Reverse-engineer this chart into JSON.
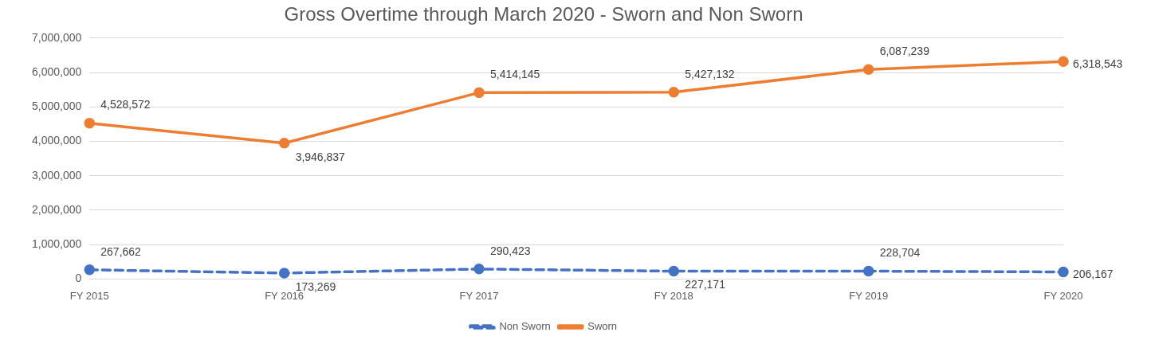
{
  "chart_data": {
    "type": "line",
    "title": "Gross Overtime through March 2020 - Sworn and Non Sworn",
    "categories": [
      "FY 2015",
      "FY 2016",
      "FY 2017",
      "FY 2018",
      "FY 2019",
      "FY 2020"
    ],
    "series": [
      {
        "name": "Non Sworn",
        "color": "#4472c4",
        "line_style": "dashed",
        "values": [
          267662,
          173269,
          290423,
          227171,
          228704,
          206167
        ],
        "value_labels": [
          "267,662",
          "173,269",
          "290,423",
          "227,171",
          "228,704",
          "206,167"
        ]
      },
      {
        "name": "Sworn",
        "color": "#ed7d31",
        "line_style": "solid",
        "values": [
          4528572,
          3946837,
          5414145,
          5427132,
          6087239,
          6318543
        ],
        "value_labels": [
          "4,528,572",
          "3,946,837",
          "5,414,145",
          "5,427,132",
          "6,087,239",
          "6,318,543"
        ]
      }
    ],
    "ylim": [
      0,
      7000000
    ],
    "yticks": [
      0,
      {
        "value": 1000000,
        "label": "1,000,000"
      },
      {
        "value": 2000000,
        "label": "2,000,000"
      },
      {
        "value": 3000000,
        "label": "3,000,000"
      },
      {
        "value": 4000000,
        "label": "4,000,000"
      },
      {
        "value": 5000000,
        "label": "5,000,000"
      },
      {
        "value": 6000000,
        "label": "6,000,000"
      },
      {
        "value": 7000000,
        "label": "7,000,000"
      }
    ],
    "grid": "y",
    "legend": "bottom",
    "marker": "circle"
  }
}
